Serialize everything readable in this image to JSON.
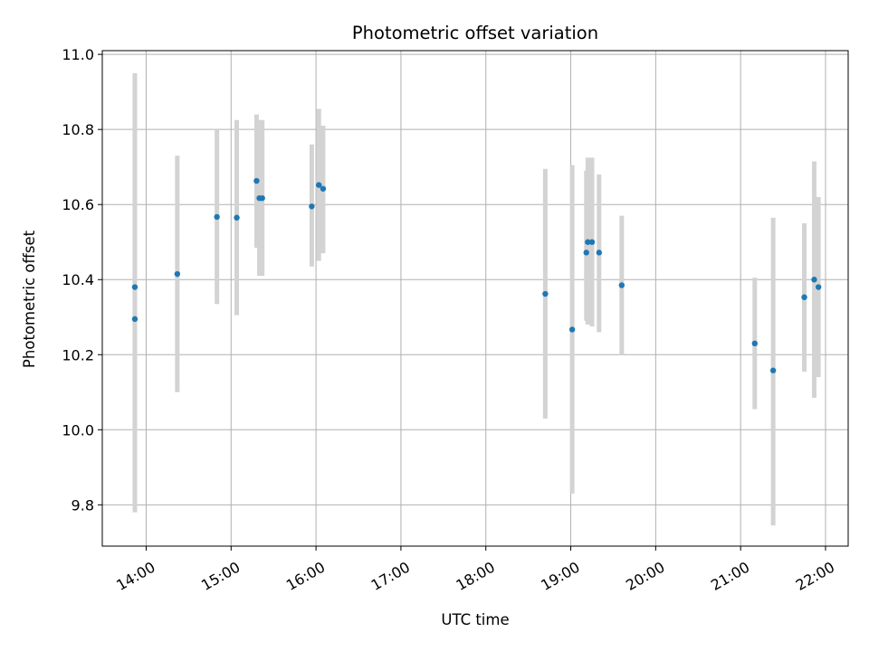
{
  "chart_data": {
    "type": "scatter",
    "title": "Photometric offset variation",
    "xlabel": "UTC time",
    "ylabel": "Photometric offset",
    "x_ticks": [
      "14:00",
      "15:00",
      "16:00",
      "17:00",
      "18:00",
      "19:00",
      "20:00",
      "21:00",
      "22:00"
    ],
    "y_ticks": [
      "9.8",
      "10.0",
      "10.2",
      "10.4",
      "10.6",
      "10.8",
      "11.0"
    ],
    "xlim": [
      "13:29",
      "22:16"
    ],
    "ylim": [
      9.69,
      11.01
    ],
    "grid": true,
    "points": [
      {
        "time": "13:52",
        "y": 10.38,
        "lo": 9.81,
        "hi": 10.95
      },
      {
        "time": "13:52",
        "y": 10.295,
        "lo": 9.78,
        "hi": 10.81
      },
      {
        "time": "14:22",
        "y": 10.415,
        "lo": 10.1,
        "hi": 10.73
      },
      {
        "time": "14:50",
        "y": 10.567,
        "lo": 10.335,
        "hi": 10.8
      },
      {
        "time": "15:04",
        "y": 10.565,
        "lo": 10.305,
        "hi": 10.825
      },
      {
        "time": "15:18",
        "y": 10.663,
        "lo": 10.485,
        "hi": 10.84
      },
      {
        "time": "15:20",
        "y": 10.617,
        "lo": 10.41,
        "hi": 10.825
      },
      {
        "time": "15:22",
        "y": 10.617,
        "lo": 10.41,
        "hi": 10.825
      },
      {
        "time": "15:57",
        "y": 10.595,
        "lo": 10.435,
        "hi": 10.76
      },
      {
        "time": "16:02",
        "y": 10.652,
        "lo": 10.45,
        "hi": 10.855
      },
      {
        "time": "16:05",
        "y": 10.642,
        "lo": 10.47,
        "hi": 10.81
      },
      {
        "time": "18:42",
        "y": 10.362,
        "lo": 10.03,
        "hi": 10.695
      },
      {
        "time": "19:01",
        "y": 10.267,
        "lo": 9.83,
        "hi": 10.705
      },
      {
        "time": "19:11",
        "y": 10.472,
        "lo": 10.29,
        "hi": 10.69
      },
      {
        "time": "19:12",
        "y": 10.5,
        "lo": 10.28,
        "hi": 10.725
      },
      {
        "time": "19:15",
        "y": 10.5,
        "lo": 10.275,
        "hi": 10.725
      },
      {
        "time": "19:20",
        "y": 10.472,
        "lo": 10.26,
        "hi": 10.68
      },
      {
        "time": "19:36",
        "y": 10.385,
        "lo": 10.2,
        "hi": 10.57
      },
      {
        "time": "21:10",
        "y": 10.23,
        "lo": 10.055,
        "hi": 10.405
      },
      {
        "time": "21:23",
        "y": 10.158,
        "lo": 9.745,
        "hi": 10.565
      },
      {
        "time": "21:45",
        "y": 10.353,
        "lo": 10.155,
        "hi": 10.55
      },
      {
        "time": "21:52",
        "y": 10.4,
        "lo": 10.085,
        "hi": 10.715
      },
      {
        "time": "21:55",
        "y": 10.38,
        "lo": 10.14,
        "hi": 10.62
      }
    ],
    "colors": {
      "point": "#1f77b4",
      "errorbar": "#d3d3d3",
      "grid": "#b0b0b0",
      "axes": "#000000"
    }
  }
}
